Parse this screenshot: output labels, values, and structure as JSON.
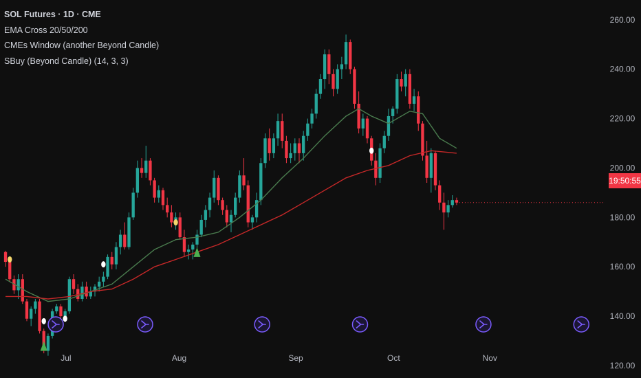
{
  "legend": {
    "symbol": "SOL Futures · 1D · CME",
    "ema": "EMA Cross 20/50/200",
    "window": "CMEs Window (another Beyond Candle)",
    "sbuy": "SBuy (Beyond Candle) (14, 3, 3)"
  },
  "price_badge": "19:50:55",
  "colors": {
    "background": "#0f0f0f",
    "up": "#26a69a",
    "down": "#f23645",
    "ema_short": "#4a7c4e",
    "ema_long": "#c62828",
    "signal_triangle": "#4caf50",
    "dot_white": "#ffffff",
    "dot_yellow": "#f5d76e",
    "cme_icon": "#7b5cff"
  },
  "cme_icon": "cme-window-icon",
  "chart_data": {
    "type": "candlestick",
    "title": "SOL Futures · 1D · CME",
    "xlabel": "",
    "ylabel": "",
    "ylim": [
      115,
      268
    ],
    "yticks": [
      "260.00",
      "240.00",
      "220.00",
      "200.00",
      "180.00",
      "160.00",
      "140.00",
      "120.00"
    ],
    "xticks": [
      "Jul",
      "Aug",
      "Sep",
      "Oct",
      "Nov"
    ],
    "xtick_pos": [
      14.2,
      40.8,
      68.2,
      91.2,
      113.8
    ],
    "x_range": [
      -1.3,
      139.3
    ],
    "candles": [
      [
        166,
        166.5,
        160,
        162
      ],
      [
        162,
        163,
        154,
        155
      ],
      [
        155,
        156.5,
        149,
        150.5
      ],
      [
        150.5,
        157,
        147,
        155
      ],
      [
        155,
        157,
        145,
        146
      ],
      [
        146,
        147,
        138,
        139
      ],
      [
        139,
        144,
        136,
        143
      ],
      [
        143,
        147,
        141,
        146
      ],
      [
        146,
        147,
        133,
        134
      ],
      [
        134,
        135,
        125,
        126
      ],
      [
        126,
        133,
        124,
        132
      ],
      [
        132,
        143,
        131,
        142
      ],
      [
        142,
        145,
        141,
        144
      ],
      [
        144,
        145,
        139,
        140
      ],
      [
        140,
        143,
        138,
        142
      ],
      [
        142,
        156,
        141,
        155
      ],
      [
        155,
        157,
        149,
        151
      ],
      [
        151,
        153,
        146,
        147
      ],
      [
        147,
        154,
        146,
        152
      ],
      [
        152,
        154,
        147,
        148
      ],
      [
        148,
        152,
        147,
        150
      ],
      [
        150,
        153,
        148,
        152
      ],
      [
        152,
        156,
        150,
        154
      ],
      [
        154,
        158,
        152,
        156
      ],
      [
        156,
        165,
        155,
        164
      ],
      [
        164,
        166,
        159,
        161
      ],
      [
        161,
        170,
        159,
        168
      ],
      [
        168,
        175,
        165,
        173
      ],
      [
        173,
        178,
        167,
        168
      ],
      [
        168,
        182,
        167,
        180
      ],
      [
        180,
        192,
        179,
        190
      ],
      [
        190,
        203,
        188,
        200
      ],
      [
        200,
        204,
        196,
        198
      ],
      [
        198,
        209,
        196,
        203
      ],
      [
        203,
        204,
        193,
        195
      ],
      [
        195,
        196,
        186,
        188
      ],
      [
        188,
        193,
        186,
        191
      ],
      [
        191,
        192,
        183,
        185
      ],
      [
        185,
        188,
        180,
        182
      ],
      [
        182,
        185,
        176,
        178
      ],
      [
        178,
        182,
        175,
        180
      ],
      [
        180,
        182,
        171,
        172
      ],
      [
        172,
        175,
        164,
        166
      ],
      [
        166,
        169,
        163,
        167
      ],
      [
        167,
        170,
        163,
        169
      ],
      [
        169,
        175,
        167,
        173
      ],
      [
        173,
        181,
        172,
        179
      ],
      [
        179,
        185,
        176,
        183
      ],
      [
        183,
        190,
        180,
        188
      ],
      [
        188,
        199,
        186,
        196
      ],
      [
        196,
        197,
        185,
        187
      ],
      [
        187,
        188,
        181,
        183
      ],
      [
        183,
        185,
        176,
        178
      ],
      [
        178,
        183,
        174,
        181
      ],
      [
        181,
        190,
        180,
        188
      ],
      [
        188,
        199,
        186,
        197
      ],
      [
        197,
        204,
        191,
        193
      ],
      [
        193,
        195,
        176,
        178
      ],
      [
        178,
        181,
        175,
        180
      ],
      [
        180,
        190,
        178,
        187
      ],
      [
        187,
        204,
        185,
        202
      ],
      [
        202,
        214,
        200,
        212
      ],
      [
        212,
        216,
        203,
        206
      ],
      [
        206,
        214,
        204,
        212
      ],
      [
        212,
        222,
        209,
        219
      ],
      [
        219,
        222,
        208,
        211
      ],
      [
        211,
        213,
        202,
        204
      ],
      [
        204,
        210,
        202,
        206
      ],
      [
        206,
        212,
        203,
        210
      ],
      [
        210,
        212,
        202,
        206
      ],
      [
        206,
        215,
        203,
        213
      ],
      [
        213,
        220,
        211,
        218
      ],
      [
        218,
        224,
        216,
        222
      ],
      [
        222,
        232,
        220,
        230
      ],
      [
        230,
        238,
        228,
        236
      ],
      [
        236,
        248,
        232,
        246
      ],
      [
        246,
        248,
        234,
        238
      ],
      [
        238,
        240,
        229,
        232
      ],
      [
        232,
        242,
        230,
        240
      ],
      [
        240,
        245,
        236,
        242
      ],
      [
        242,
        254,
        240,
        251
      ],
      [
        251,
        252,
        238,
        240
      ],
      [
        240,
        241,
        224,
        226
      ],
      [
        226,
        231,
        214,
        216
      ],
      [
        216,
        222,
        213,
        220
      ],
      [
        220,
        221,
        210,
        212
      ],
      [
        212,
        213,
        201,
        203
      ],
      [
        203,
        206,
        193,
        196
      ],
      [
        196,
        210,
        194,
        208
      ],
      [
        208,
        215,
        206,
        213
      ],
      [
        213,
        224,
        211,
        221
      ],
      [
        221,
        225,
        218,
        224
      ],
      [
        224,
        238,
        222,
        236
      ],
      [
        236,
        239,
        231,
        233
      ],
      [
        233,
        240,
        229,
        238
      ],
      [
        238,
        240,
        224,
        226
      ],
      [
        226,
        232,
        223,
        229
      ],
      [
        229,
        231,
        215,
        218
      ],
      [
        218,
        219,
        203,
        205
      ],
      [
        205,
        211,
        194,
        196
      ],
      [
        196,
        208,
        190,
        206
      ],
      [
        206,
        207,
        191,
        193
      ],
      [
        193,
        195,
        183,
        186
      ],
      [
        186,
        190,
        175,
        182
      ],
      [
        182,
        187,
        180,
        185
      ],
      [
        185,
        189,
        184,
        187
      ],
      [
        187,
        188,
        185,
        186
      ]
    ],
    "series": [
      {
        "name": "EMA 20",
        "values": [
          [
            0,
            155
          ],
          [
            5,
            150
          ],
          [
            10,
            146
          ],
          [
            15,
            147
          ],
          [
            20,
            150
          ],
          [
            25,
            153
          ],
          [
            30,
            160
          ],
          [
            35,
            167
          ],
          [
            40,
            171
          ],
          [
            45,
            172
          ],
          [
            50,
            174
          ],
          [
            55,
            180
          ],
          [
            60,
            187
          ],
          [
            65,
            196
          ],
          [
            70,
            204
          ],
          [
            75,
            213
          ],
          [
            80,
            221
          ],
          [
            83,
            224
          ],
          [
            86,
            221
          ],
          [
            90,
            218
          ],
          [
            95,
            223
          ],
          [
            98,
            222
          ],
          [
            102,
            212
          ],
          [
            106,
            208
          ]
        ]
      },
      {
        "name": "EMA 50",
        "values": [
          [
            0,
            148
          ],
          [
            5,
            148
          ],
          [
            10,
            147
          ],
          [
            15,
            148
          ],
          [
            20,
            150
          ],
          [
            25,
            151
          ],
          [
            30,
            155
          ],
          [
            35,
            160
          ],
          [
            40,
            163
          ],
          [
            45,
            166
          ],
          [
            50,
            169
          ],
          [
            55,
            173
          ],
          [
            60,
            177
          ],
          [
            65,
            181
          ],
          [
            70,
            186
          ],
          [
            75,
            191
          ],
          [
            80,
            196
          ],
          [
            85,
            199
          ],
          [
            90,
            201
          ],
          [
            95,
            205
          ],
          [
            100,
            207
          ],
          [
            106,
            206
          ]
        ]
      }
    ],
    "markers": {
      "triangles": [
        [
          9,
          126
        ],
        [
          45,
          164
        ]
      ],
      "white_dots": [
        [
          9,
          138
        ],
        [
          14,
          139
        ],
        [
          23,
          161
        ],
        [
          86,
          207
        ]
      ],
      "yellow_dots": [
        [
          1,
          163
        ],
        [
          40,
          178
        ]
      ]
    },
    "cme_icons_x": [
      11.8,
      32.8,
      60.3,
      83.3,
      112.3,
      135.3
    ]
  }
}
